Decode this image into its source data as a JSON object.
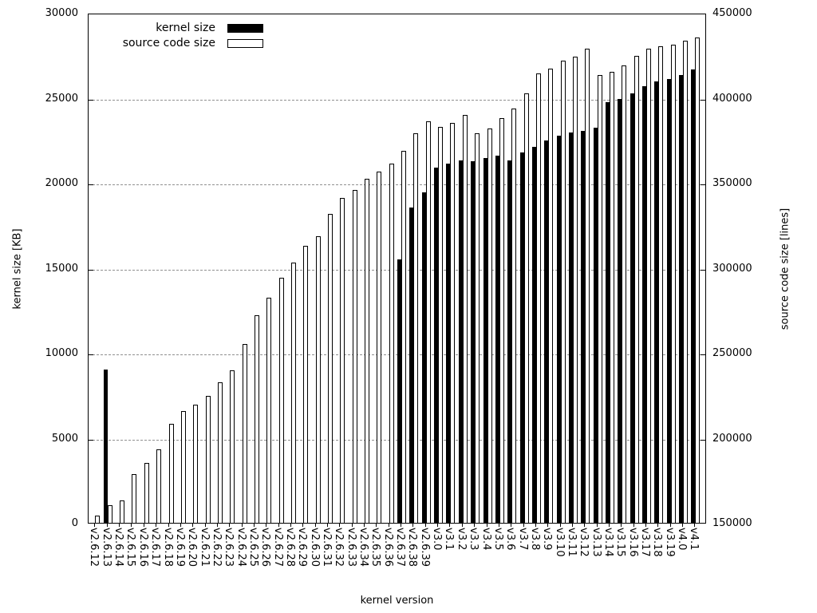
{
  "chart_data": {
    "type": "bar",
    "title": "",
    "xlabel": "kernel version",
    "ylabel_left": "kernel size [KB]",
    "ylabel_right": "source code size [lines]",
    "grid": "horizontal-dashed",
    "legend_position": "top-left-inside",
    "y_left": {
      "min": 0,
      "max": 30000,
      "step": 5000
    },
    "y_right": {
      "min": 150000,
      "max": 450000,
      "step": 50000
    },
    "y_left_ticks": [
      "0",
      "5000",
      "10000",
      "15000",
      "20000",
      "25000",
      "30000"
    ],
    "y_right_ticks": [
      "150000",
      "200000",
      "250000",
      "300000",
      "350000",
      "400000",
      "450000"
    ],
    "categories": [
      "v2.6.12",
      "v2.6.13",
      "v2.6.14",
      "v2.6.15",
      "v2.6.16",
      "v2.6.17",
      "v2.6.18",
      "v2.6.19",
      "v2.6.20",
      "v2.6.21",
      "v2.6.22",
      "v2.6.23",
      "v2.6.24",
      "v2.6.25",
      "v2.6.26",
      "v2.6.27",
      "v2.6.28",
      "v2.6.29",
      "v2.6.30",
      "v2.6.31",
      "v2.6.32",
      "v2.6.33",
      "v2.6.34",
      "v2.6.35",
      "v2.6.36",
      "v2.6.37",
      "v2.6.38",
      "v2.6.39",
      "v3.0",
      "v3.1",
      "v3.2",
      "v3.3",
      "v3.4",
      "v3.5",
      "v3.6",
      "v3.7",
      "v3.8",
      "v3.9",
      "v3.10",
      "v3.11",
      "v3.12",
      "v3.13",
      "v3.14",
      "v3.15",
      "v3.16",
      "v3.17",
      "v3.18",
      "v3.19",
      "v4.0",
      "v4.1"
    ],
    "series": [
      {
        "name": "kernel size",
        "axis": "left",
        "unit": "KB",
        "style": "filled-black",
        "values": [
          0,
          9000,
          0,
          0,
          0,
          0,
          0,
          0,
          0,
          0,
          0,
          0,
          0,
          0,
          0,
          0,
          0,
          0,
          0,
          0,
          0,
          0,
          0,
          0,
          0,
          15500,
          18550,
          19450,
          20900,
          21150,
          21320,
          21280,
          21460,
          21600,
          21320,
          21780,
          22110,
          22500,
          22770,
          22950,
          23050,
          23250,
          24740,
          24930,
          25250,
          25680,
          25960,
          26100,
          26350,
          26650
        ]
      },
      {
        "name": "source code size",
        "axis": "right",
        "unit": "lines",
        "style": "white-outlined",
        "values": [
          154200,
          160300,
          163100,
          178600,
          185200,
          193200,
          208200,
          215700,
          219500,
          224600,
          232600,
          239700,
          255200,
          272100,
          282400,
          294100,
          303100,
          312900,
          318500,
          331700,
          341100,
          345800,
          352400,
          356600,
          361300,
          368800,
          379100,
          386200,
          382900,
          385200,
          389900,
          379100,
          381900,
          388000,
          393700,
          402600,
          414300,
          417100,
          421800,
          424200,
          428900,
          413400,
          415300,
          419000,
          424700,
          428900,
          430300,
          431200,
          433600,
          435400
        ]
      }
    ]
  },
  "legend": {
    "items": [
      {
        "label": "kernel size",
        "swatch": "black"
      },
      {
        "label": "source code size",
        "swatch": "white"
      }
    ]
  }
}
